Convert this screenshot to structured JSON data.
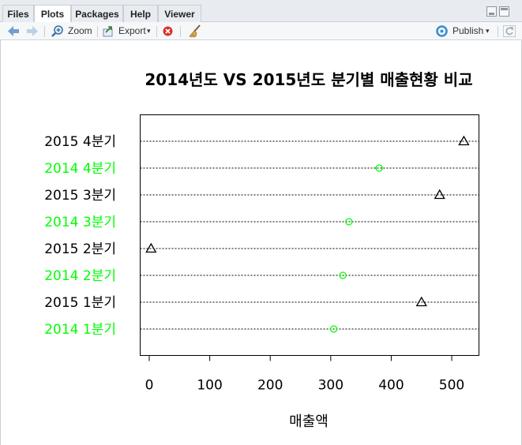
{
  "tabs": [
    {
      "label": "Files"
    },
    {
      "label": "Plots"
    },
    {
      "label": "Packages"
    },
    {
      "label": "Help"
    },
    {
      "label": "Viewer"
    }
  ],
  "active_tab": "Plots",
  "toolbar": {
    "zoom_label": "Zoom",
    "export_label": "Export",
    "publish_label": "Publish"
  },
  "colors": {
    "series_2014": "#00ff00",
    "series_2015": "#000000"
  },
  "chart_data": {
    "type": "scatter",
    "subtype": "dotchart",
    "title": "2014년도 VS 2015년도 분기별 매출현황 비교",
    "xlabel": "매출액",
    "ylabel": "",
    "xlim": [
      -15,
      545
    ],
    "xticks": [
      0,
      100,
      200,
      300,
      400,
      500
    ],
    "grid": "dotted horizontal lines",
    "legend": "none",
    "points": [
      {
        "label": "2014 1분기",
        "value": 305,
        "marker": "circle",
        "color": "#00ff00"
      },
      {
        "label": "2015 1분기",
        "value": 450,
        "marker": "triangle",
        "color": "#000000"
      },
      {
        "label": "2014 2분기",
        "value": 320,
        "marker": "circle",
        "color": "#00ff00"
      },
      {
        "label": "2015 2분기",
        "value": 3,
        "marker": "triangle",
        "color": "#000000"
      },
      {
        "label": "2014 3분기",
        "value": 330,
        "marker": "circle",
        "color": "#00ff00"
      },
      {
        "label": "2015 3분기",
        "value": 480,
        "marker": "triangle",
        "color": "#000000"
      },
      {
        "label": "2014 4분기",
        "value": 380,
        "marker": "circle",
        "color": "#00ff00"
      },
      {
        "label": "2015 4분기",
        "value": 520,
        "marker": "triangle",
        "color": "#000000"
      }
    ]
  }
}
